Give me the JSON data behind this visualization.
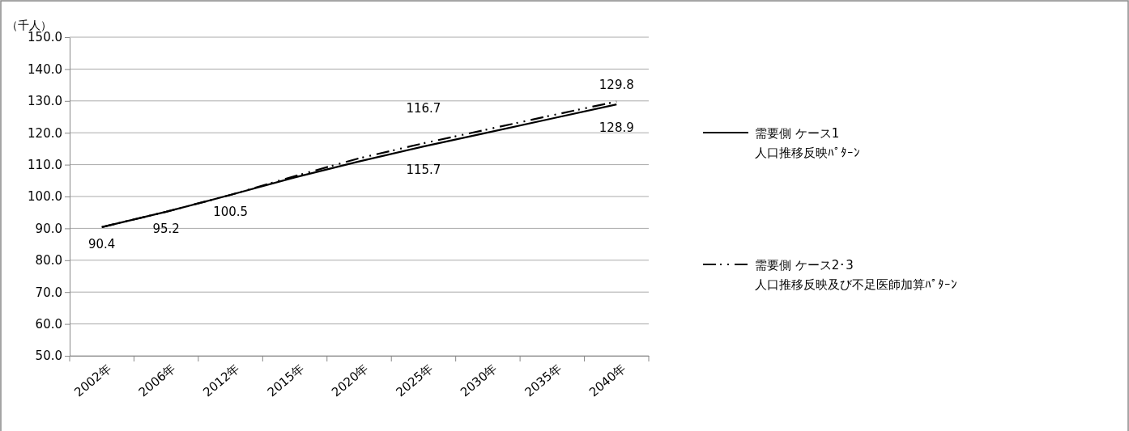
{
  "chart_data": {
    "type": "line",
    "ylabel": "（千人）",
    "categories": [
      "2002年",
      "2006年",
      "2012年",
      "2015年",
      "2020年",
      "2025年",
      "2030年",
      "2035年",
      "2040年"
    ],
    "series": [
      {
        "name": "需要側 ケース1\n人口推移反映ﾊﾟﾀｰﾝ",
        "color": "#000000",
        "line_style": "solid",
        "values": [
          90.4,
          95.2,
          100.5,
          106.0,
          111.0,
          115.7,
          120.1,
          124.5,
          128.9
        ],
        "value_labels": [
          "90.4",
          "95.2",
          "100.5",
          null,
          null,
          "115.7",
          null,
          null,
          "128.9"
        ]
      },
      {
        "name": "需要側 ケース2･3\n人口推移反映及び不足医師加算ﾊﾟﾀｰﾝ",
        "color": "#000000",
        "line_style": "dashed",
        "values": [
          90.4,
          95.2,
          100.5,
          106.4,
          112.0,
          116.7,
          121.1,
          125.5,
          129.8
        ],
        "value_labels": [
          null,
          null,
          null,
          null,
          null,
          "116.7",
          null,
          null,
          "129.8"
        ]
      }
    ],
    "ylim": [
      50,
      150
    ],
    "yticks": [
      {
        "value": 50,
        "label": "50.0"
      },
      {
        "value": 60,
        "label": "60.0"
      },
      {
        "value": 70,
        "label": "70.0"
      },
      {
        "value": 80,
        "label": "80.0"
      },
      {
        "value": 90,
        "label": "90.0"
      },
      {
        "value": 100,
        "label": "100.0"
      },
      {
        "value": 110,
        "label": "110.0"
      },
      {
        "value": 120,
        "label": "120.0"
      },
      {
        "value": 130,
        "label": "130.0"
      },
      {
        "value": 140,
        "label": "140.0"
      },
      {
        "value": 150,
        "label": "150.0"
      }
    ],
    "grid": "y",
    "legend": "right",
    "marker": "none"
  }
}
